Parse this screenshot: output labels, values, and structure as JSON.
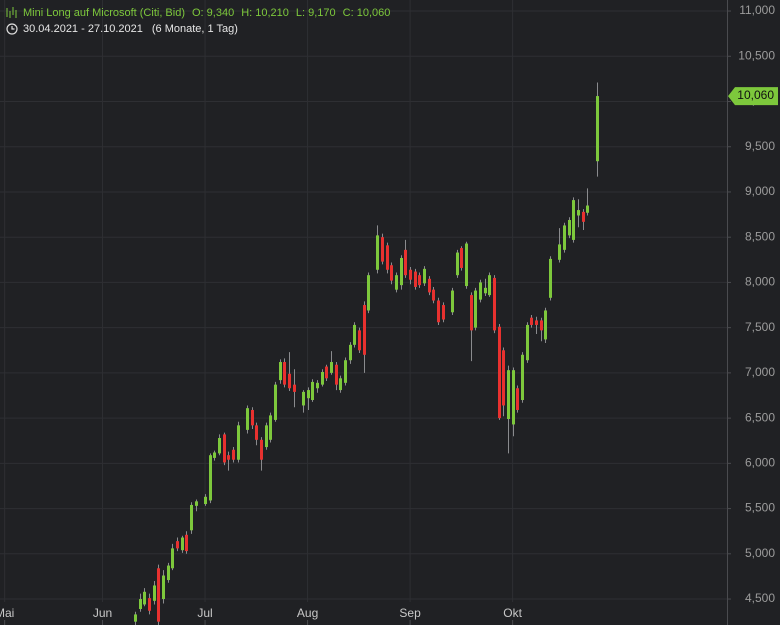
{
  "chart_data": {
    "type": "candlestick",
    "title": "Mini Long auf Microsoft (Citi, Bid)",
    "header_ohlc": [
      "O: 9,340",
      "H: 10,210",
      "L: 9,170",
      "C: 10,060"
    ],
    "date_range": "30.04.2021 - 27.10.2021",
    "period": "(6 Monate, 1 Tag)",
    "last_close_label": "10,060",
    "up_color": "#7dc83c",
    "down_color": "#e8312f",
    "grid": true,
    "xlim": [
      0,
      156
    ],
    "xticks": [
      {
        "value": 1,
        "label": "Mai"
      },
      {
        "value": 22,
        "label": "Jun"
      },
      {
        "value": 44,
        "label": "Jul"
      },
      {
        "value": 66,
        "label": "Aug"
      },
      {
        "value": 88,
        "label": "Sep"
      },
      {
        "value": 110,
        "label": "Okt"
      }
    ],
    "ylim": [
      4213,
      11122
    ],
    "yticks": [
      {
        "value": 4500,
        "label": "4,500"
      },
      {
        "value": 5000,
        "label": "5,000"
      },
      {
        "value": 5500,
        "label": "5,500"
      },
      {
        "value": 6000,
        "label": "6,000"
      },
      {
        "value": 6500,
        "label": "6,500"
      },
      {
        "value": 7000,
        "label": "7,000"
      },
      {
        "value": 7500,
        "label": "7,500"
      },
      {
        "value": 8000,
        "label": "8,000"
      },
      {
        "value": 8500,
        "label": "8,500"
      },
      {
        "value": 9000,
        "label": "9,000"
      },
      {
        "value": 9500,
        "label": "9,500"
      },
      {
        "value": 10000,
        "label": "10,000"
      },
      {
        "value": 10500,
        "label": "10,500"
      },
      {
        "value": 11000,
        "label": "11,000"
      }
    ],
    "x": [
      29,
      30,
      31,
      32,
      33,
      34,
      35,
      36,
      37,
      38,
      39,
      40,
      41,
      42,
      44,
      45,
      46,
      47,
      48,
      49,
      50,
      51,
      53,
      54,
      55,
      56,
      57,
      58,
      59,
      60,
      61,
      62,
      63,
      65,
      66,
      67,
      68,
      69,
      70,
      71,
      72,
      73,
      74,
      75,
      76,
      77,
      78,
      79,
      81,
      82,
      83,
      84,
      85,
      86,
      87,
      88,
      89,
      90,
      91,
      92,
      93,
      94,
      95,
      97,
      98,
      99,
      100,
      101,
      102,
      103,
      104,
      105,
      106,
      107,
      108,
      109,
      110,
      111,
      112,
      113,
      114,
      115,
      116,
      117,
      118,
      120,
      121,
      122,
      123,
      124,
      125,
      126,
      128
    ],
    "open": [
      4250,
      4390,
      4440,
      4510,
      4480,
      4840,
      4500,
      4710,
      4840,
      5140,
      5040,
      5210,
      5260,
      5530,
      5550,
      5590,
      6060,
      6110,
      6320,
      6090,
      6150,
      6040,
      6370,
      6590,
      6420,
      6260,
      6180,
      6260,
      6480,
      6920,
      7120,
      6990,
      6870,
      6640,
      6720,
      6700,
      6830,
      6870,
      7070,
      7000,
      7090,
      6810,
      6890,
      7140,
      7310,
      7470,
      7750,
      7690,
      8140,
      8500,
      8410,
      8190,
      7920,
      7970,
      8360,
      8140,
      8120,
      8080,
      7990,
      8040,
      7920,
      7800,
      7750,
      7670,
      8080,
      8380,
      7960,
      7860,
      7500,
      7810,
      7880,
      7860,
      8050,
      7510,
      7250,
      6490,
      6430,
      6830,
      6700,
      7140,
      7610,
      7580,
      7580,
      7370,
      7830,
      8250,
      8360,
      8520,
      8470,
      8740,
      8780,
      8770,
      9340
    ],
    "high": [
      4360,
      4560,
      4620,
      4560,
      4700,
      4880,
      4820,
      4900,
      5110,
      5180,
      5200,
      5250,
      5570,
      5600,
      5660,
      6110,
      6140,
      6320,
      6340,
      6130,
      6180,
      6460,
      6640,
      6620,
      6450,
      6290,
      6450,
      6560,
      6900,
      7150,
      7160,
      7230,
      7040,
      6810,
      6840,
      6930,
      6920,
      7040,
      7090,
      7240,
      7120,
      6970,
      7170,
      7340,
      7560,
      7500,
      7790,
      8110,
      8630,
      8540,
      8440,
      8220,
      8110,
      8300,
      8470,
      8170,
      8150,
      8110,
      8180,
      8070,
      7950,
      7830,
      7780,
      7940,
      8360,
      8400,
      8450,
      7890,
      7940,
      8030,
      8040,
      8110,
      8080,
      7540,
      7280,
      7080,
      7060,
      6860,
      7230,
      7560,
      7640,
      7620,
      7610,
      7720,
      8290,
      8600,
      8660,
      8720,
      8940,
      8920,
      8810,
      9040,
      10210
    ],
    "low": [
      4150,
      4360,
      4420,
      4330,
      4440,
      4150,
      4450,
      4680,
      4820,
      5030,
      5010,
      5000,
      5220,
      5470,
      5530,
      5560,
      6030,
      6090,
      5980,
      5920,
      6010,
      6010,
      6330,
      6380,
      6200,
      5920,
      6150,
      6230,
      6460,
      6880,
      6840,
      6800,
      6620,
      6560,
      6590,
      6680,
      6780,
      6850,
      6910,
      6980,
      6810,
      6780,
      6860,
      7100,
      7280,
      7220,
      7000,
      7660,
      8100,
      8200,
      8100,
      7980,
      7890,
      7920,
      8050,
      7980,
      7920,
      7940,
      7960,
      7860,
      7770,
      7530,
      7560,
      7640,
      8050,
      8130,
      7930,
      7130,
      7470,
      7780,
      7850,
      7840,
      7440,
      6480,
      6520,
      6110,
      6300,
      6560,
      6670,
      7110,
      7500,
      7430,
      7350,
      7330,
      7800,
      8220,
      8330,
      8490,
      8440,
      8610,
      8580,
      8740,
      9170
    ],
    "close": [
      4330,
      4500,
      4580,
      4370,
      4650,
      4250,
      4760,
      4870,
      5060,
      5060,
      5180,
      5030,
      5540,
      5580,
      5630,
      6090,
      6120,
      6280,
      6010,
      6040,
      6040,
      6420,
      6610,
      6420,
      6260,
      6040,
      6420,
      6530,
      6870,
      7120,
      6870,
      6830,
      6790,
      6790,
      6810,
      6900,
      6890,
      7010,
      6940,
      7120,
      6870,
      6940,
      7140,
      7310,
      7530,
      7250,
      7200,
      8080,
      8520,
      8230,
      8140,
      8020,
      8080,
      8270,
      8080,
      8030,
      7950,
      7970,
      8150,
      7890,
      7800,
      7560,
      7590,
      7910,
      8330,
      8160,
      8430,
      7470,
      7910,
      8000,
      7940,
      8080,
      7470,
      6500,
      6640,
      7030,
      7030,
      6590,
      7200,
      7530,
      7530,
      7530,
      7470,
      7690,
      8260,
      8420,
      8630,
      8690,
      8910,
      8800,
      8670,
      8850,
      10060
    ]
  }
}
